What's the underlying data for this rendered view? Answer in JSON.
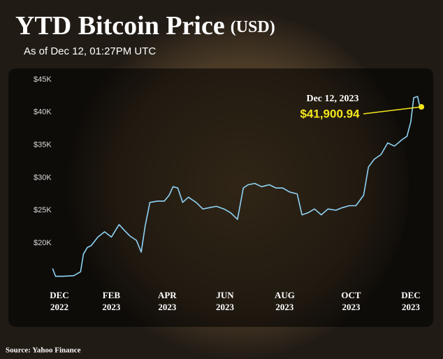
{
  "chart_data": {
    "type": "line",
    "title": "YTD Bitcoin Price",
    "title_unit": "(USD)",
    "subtitle": "As of Dec 12, 01:27PM UTC",
    "source": "Source: Yahoo Finance",
    "grid": false,
    "x": [
      -7,
      -4,
      4,
      15,
      22,
      25,
      29,
      33,
      40,
      47,
      54,
      62,
      67,
      73,
      80,
      85,
      89,
      94,
      102,
      109,
      114,
      118,
      123,
      128,
      134,
      142,
      149,
      156,
      163,
      171,
      178,
      185,
      191,
      196,
      203,
      210,
      218,
      225,
      232,
      239,
      247,
      252,
      258,
      265,
      272,
      279,
      287,
      294,
      301,
      308,
      316,
      321,
      327,
      334,
      341,
      348,
      356,
      361,
      365,
      368,
      372,
      374,
      376
    ],
    "series": [
      {
        "name": "Bitcoin",
        "color": "#8fd3f5",
        "values": [
          17200,
          16000,
          16000,
          16100,
          16700,
          19400,
          20400,
          20700,
          22000,
          22800,
          22000,
          23900,
          23100,
          22200,
          21500,
          19700,
          23600,
          27300,
          27500,
          27500,
          28400,
          29700,
          29500,
          27300,
          28100,
          27300,
          26300,
          26500,
          26700,
          26300,
          25700,
          24700,
          29500,
          30000,
          30200,
          29700,
          30000,
          29500,
          29500,
          28900,
          28600,
          25400,
          25700,
          26300,
          25400,
          26300,
          26100,
          26500,
          26800,
          26800,
          28400,
          32700,
          33900,
          34600,
          36400,
          35900,
          36900,
          37400,
          39600,
          43300,
          43500,
          42200,
          41900.94
        ]
      }
    ],
    "xlim": [
      -10,
      376
    ],
    "xticks": [
      {
        "value": 0,
        "label": "DEC 2022"
      },
      {
        "value": 54,
        "label": "FEB 2023"
      },
      {
        "value": 112,
        "label": "APR 2023"
      },
      {
        "value": 172,
        "label": "JUN 2023"
      },
      {
        "value": 234,
        "label": "AUG 2023"
      },
      {
        "value": 303,
        "label": "OCT 2023"
      },
      {
        "value": 365,
        "label": "DEC 2023"
      }
    ],
    "ylim": [
      15000,
      45000
    ],
    "yticks": [
      {
        "value": 20000,
        "label": "$20K"
      },
      {
        "value": 25000,
        "label": "$25K"
      },
      {
        "value": 30000,
        "label": "$30K"
      },
      {
        "value": 35000,
        "label": "$35K"
      },
      {
        "value": 40000,
        "label": "$40K"
      },
      {
        "value": 45000,
        "label": "$45K"
      }
    ],
    "annotation": {
      "title": "Dec 12, 2023",
      "label": "$41,900.94",
      "x": 376,
      "value": 41900.94,
      "color": "#f5e61e"
    }
  }
}
